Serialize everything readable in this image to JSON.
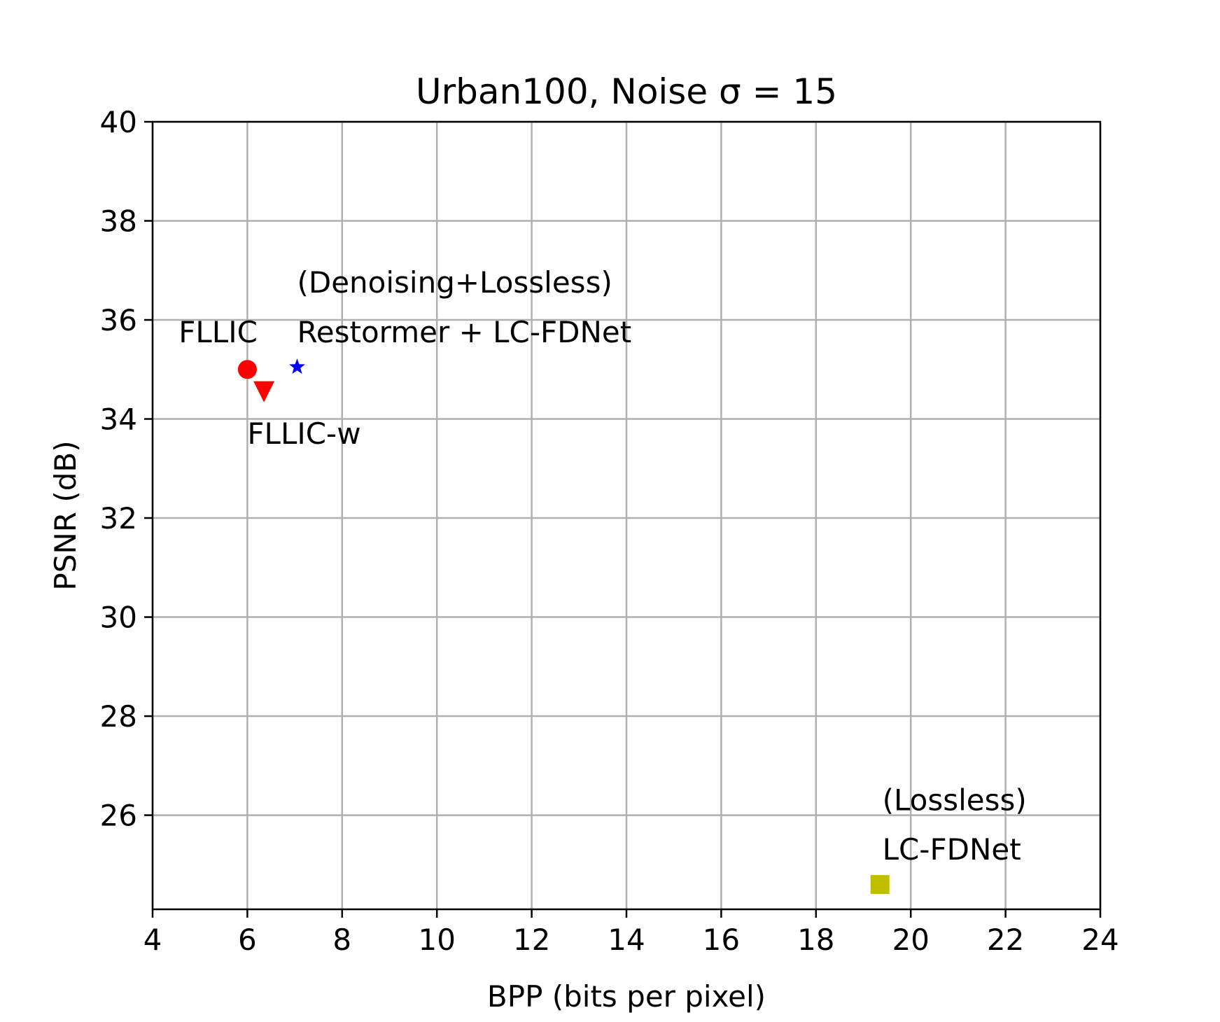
{
  "chart_data": {
    "type": "scatter",
    "title": "Urban100, Noise σ = 15",
    "xlabel": "BPP (bits per pixel)",
    "ylabel": "PSNR (dB)",
    "xlim": [
      4,
      24
    ],
    "ylim": [
      24.1,
      40
    ],
    "xticks": [
      "4",
      "6",
      "8",
      "10",
      "12",
      "14",
      "16",
      "18",
      "20",
      "22",
      "24"
    ],
    "yticks": [
      "26",
      "28",
      "30",
      "32",
      "34",
      "36",
      "38",
      "40"
    ],
    "grid": true,
    "points": [
      {
        "label": "FLLIC",
        "x": 6.0,
        "y": 35.0,
        "marker": "circle",
        "color": "#ff0000"
      },
      {
        "label": "FLLIC-w",
        "x": 6.35,
        "y": 34.55,
        "marker": "triangle-down",
        "color": "#ff0000"
      },
      {
        "label": "Restormer + LC-FDNet",
        "x": 7.05,
        "y": 35.05,
        "marker": "star",
        "color": "#0000ff"
      },
      {
        "label": "LC-FDNet",
        "x": 19.35,
        "y": 24.6,
        "marker": "square",
        "color": "#bfbf00"
      }
    ],
    "annotations": [
      {
        "text": "FLLIC",
        "x": 4.55,
        "y": 35.55
      },
      {
        "text": "FLLIC-w",
        "x": 6.0,
        "y": 33.5
      },
      {
        "text": "(Denoising+Lossless)",
        "x": 7.05,
        "y": 36.55
      },
      {
        "text": "Restormer + LC-FDNet",
        "x": 7.05,
        "y": 35.55
      },
      {
        "text": "(Lossless)",
        "x": 19.4,
        "y": 26.1
      },
      {
        "text": "LC-FDNet",
        "x": 19.4,
        "y": 25.1
      }
    ]
  }
}
